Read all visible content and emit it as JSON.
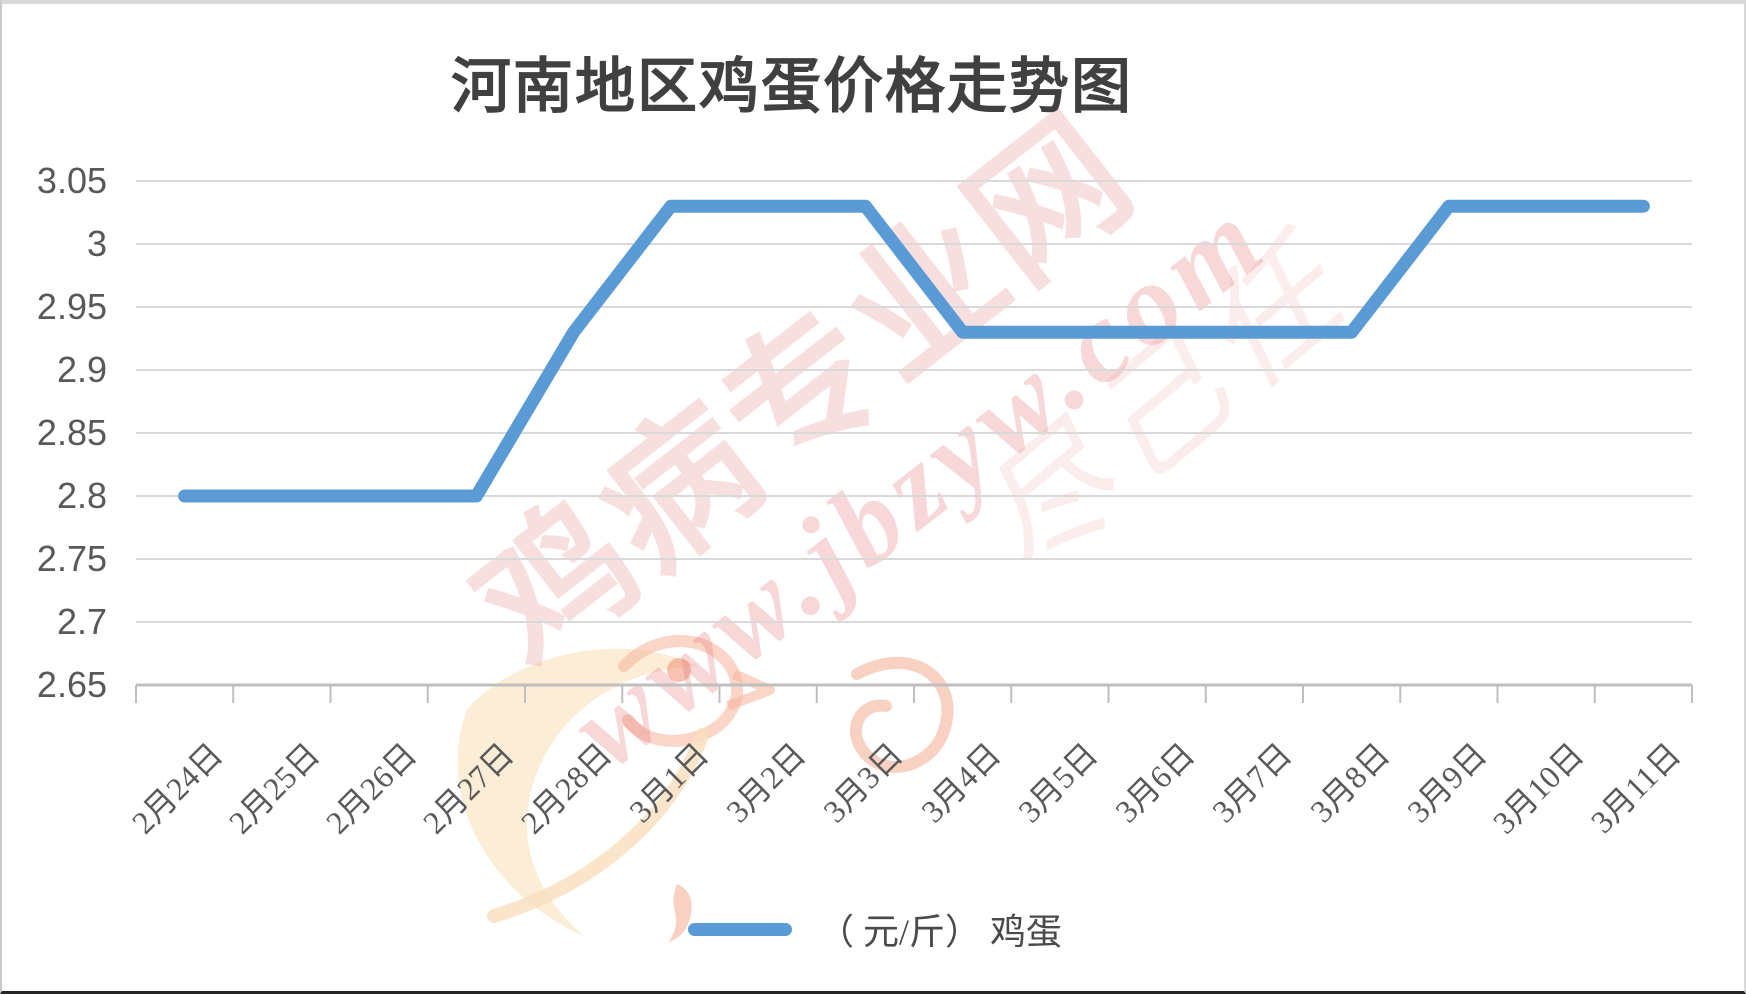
{
  "page": {
    "title": "河南地区鸡蛋价格走势图"
  },
  "legend": {
    "label": "（ 元/斤） 鸡蛋"
  },
  "watermark": {
    "site_name": "鸡病专业网",
    "site_url": "www.jbzyw.com",
    "slogan": "尽己任"
  },
  "colors": {
    "line": "#5B9BD5",
    "grid": "#D9D9D9",
    "axis": "#BFBFBF",
    "tick_label": "#595959",
    "title_text": "#404040",
    "watermark_red": "#E06E6E"
  },
  "chart_data": {
    "type": "line",
    "title": "河南地区鸡蛋价格走势图",
    "unit_label": "（ 元/斤）",
    "series_name": "鸡蛋",
    "categories": [
      "2月24日",
      "2月25日",
      "2月26日",
      "2月27日",
      "2月28日",
      "3月1日",
      "3月2日",
      "3月3日",
      "3月4日",
      "3月5日",
      "3月6日",
      "3月7日",
      "3月8日",
      "3月9日",
      "3月10日",
      "3月11日"
    ],
    "values": [
      2.8,
      2.8,
      2.8,
      2.8,
      2.93,
      3.03,
      3.03,
      3.03,
      2.93,
      2.93,
      2.93,
      2.93,
      2.93,
      3.03,
      3.03,
      3.03
    ],
    "ylim": [
      2.65,
      3.05
    ],
    "ytick_step": 0.05,
    "ytick_labels": [
      "2.65",
      "2.7",
      "2.75",
      "2.8",
      "2.85",
      "2.9",
      "2.95",
      "3",
      "3.05"
    ],
    "xlabel": "",
    "ylabel": "",
    "grid": "horizontal",
    "legend_position": "bottom"
  }
}
